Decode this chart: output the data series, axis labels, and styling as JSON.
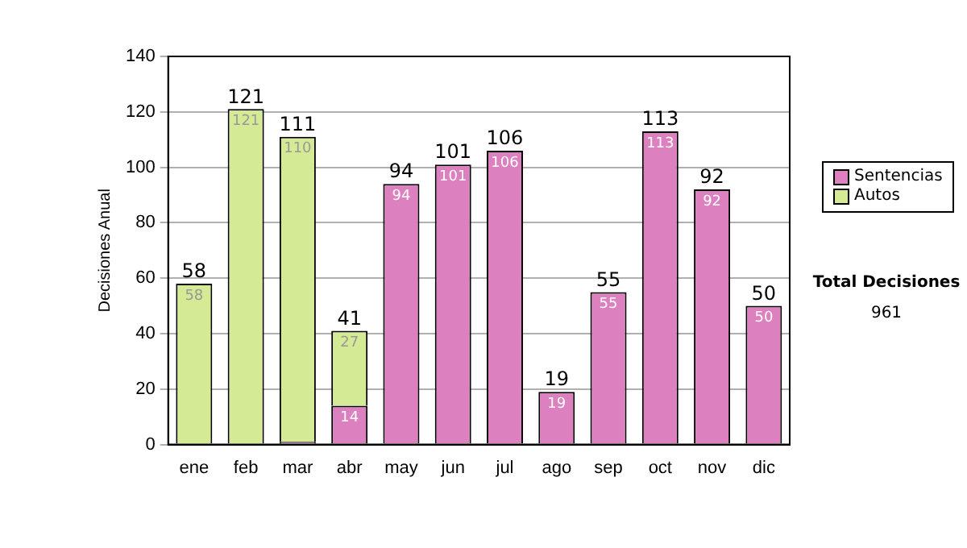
{
  "chart_data": {
    "type": "bar",
    "stacked": true,
    "ylabel": "Decisiones Anual",
    "categories": [
      "ene",
      "feb",
      "mar",
      "abr",
      "may",
      "jun",
      "jul",
      "ago",
      "sep",
      "oct",
      "nov",
      "dic"
    ],
    "series": [
      {
        "name": "Sentencias",
        "color": "#dd80c0",
        "values": [
          0,
          0,
          1,
          14,
          94,
          101,
          106,
          19,
          55,
          113,
          92,
          50
        ],
        "value_labels": [
          null,
          null,
          null,
          "14",
          "94",
          "101",
          "106",
          "19",
          "55",
          "113",
          "92",
          "50"
        ]
      },
      {
        "name": "Autos",
        "color": "#d4ea94",
        "values": [
          58,
          121,
          110,
          27,
          0,
          0,
          0,
          0,
          0,
          0,
          0,
          0
        ],
        "value_labels": [
          "58",
          "121",
          "110",
          "27",
          null,
          null,
          null,
          null,
          null,
          null,
          null,
          null
        ]
      }
    ],
    "totals": [
      "58",
      "121",
      "111",
      "41",
      "94",
      "101",
      "106",
      "19",
      "55",
      "113",
      "92",
      "50"
    ],
    "ylim": [
      0,
      140
    ],
    "yticks": [
      0,
      20,
      40,
      60,
      80,
      100,
      120,
      140
    ],
    "grid": "y",
    "legend": "right",
    "annotations": [
      "Total Decisiones",
      "961"
    ]
  }
}
